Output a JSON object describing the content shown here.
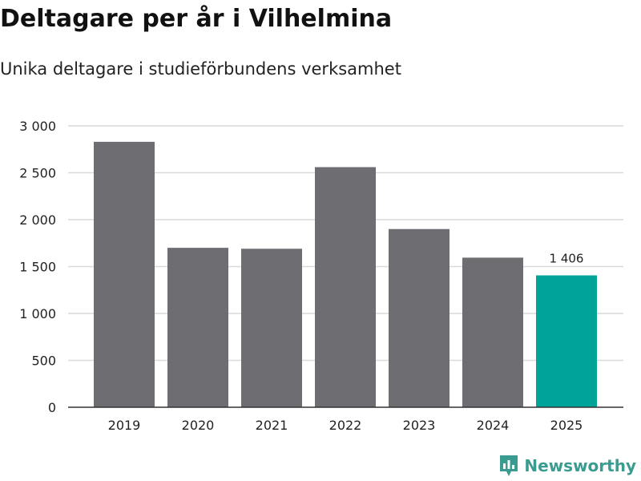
{
  "title": "Deltagare per år i Vilhelmina",
  "subtitle": "Unika deltagare i studieförbundens verksamhet",
  "brand": "Newsworthy",
  "colors": {
    "bar": "#6e6d72",
    "highlight": "#00a398",
    "grid": "#d9d9d9",
    "axis": "#333333",
    "brand": "#3a9b91"
  },
  "chart_data": {
    "type": "bar",
    "categories": [
      "2019",
      "2020",
      "2021",
      "2022",
      "2023",
      "2024",
      "2025"
    ],
    "values": [
      2830,
      1700,
      1690,
      2560,
      1900,
      1595,
      1406
    ],
    "ylim": [
      0,
      3000
    ],
    "yticks": [
      0,
      500,
      1000,
      1500,
      2000,
      2500,
      3000
    ],
    "ytick_labels": [
      "0",
      "500",
      "1 000",
      "1 500",
      "2 000",
      "2 500",
      "3 000"
    ],
    "highlight_index": 6,
    "data_labels": [
      {
        "category": "2025",
        "text": "1 406"
      }
    ],
    "grid": true,
    "xlabel": "",
    "ylabel": ""
  }
}
